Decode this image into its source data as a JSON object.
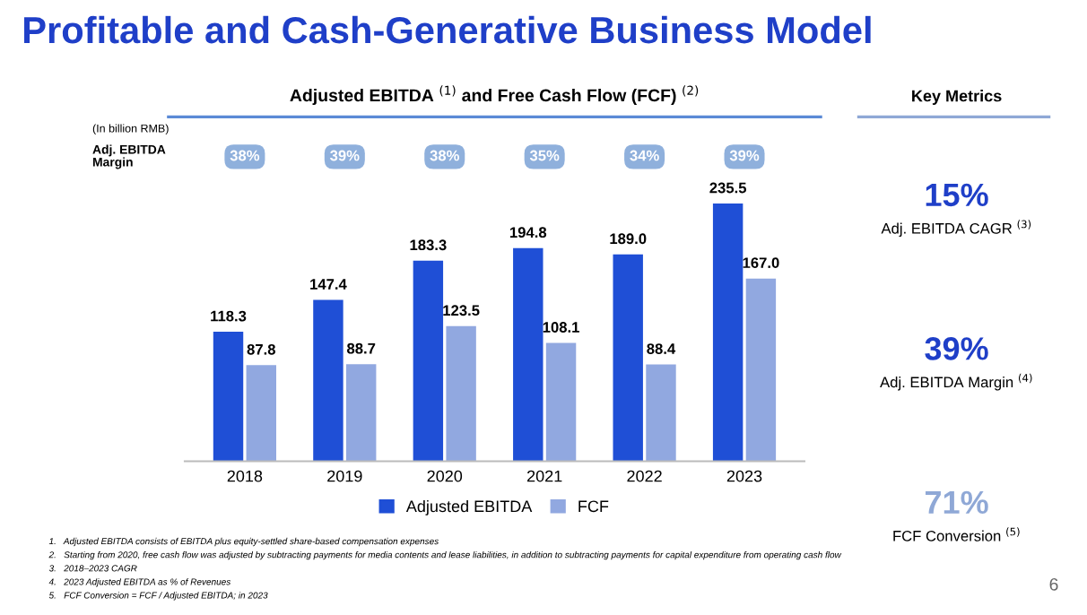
{
  "chart_data": [
    {
      "type": "bar",
      "title": "Profitable and Cash-Generative Business Model",
      "subtitle": "Adjusted EBITDA $^{(1)}$ and Free Cash Flow (FCF) $^{(2)}$",
      "categories": [
        "2018",
        "2019",
        "2020",
        "2021",
        "2022",
        "2023"
      ],
      "series": [
        {
          "name": "Adjusted EBITDA",
          "color": "#1f4fd6",
          "values": [
            118.3,
            147.4,
            183.3,
            194.8,
            189.0,
            235.5
          ],
          "value_labels": [
            "118.3",
            "147.4",
            "183.3",
            "194.8",
            "189.0",
            "235.5"
          ]
        },
        {
          "name": "FCF",
          "color": "#91a8e0",
          "values": [
            87.8,
            88.7,
            123.5,
            108.1,
            88.4,
            167.0
          ],
          "value_labels": [
            "87.8",
            "88.7",
            "123.5",
            "108.1",
            "88.4",
            "167.0"
          ]
        }
      ],
      "legend": "bottom",
      "grid": false,
      "annotations": [
        "(In billion RMB)",
        "Adj. EBITDA\nMargin",
        "38%",
        "39%",
        "38%",
        "35%",
        "34%",
        "39%",
        "1.   Adjusted EBITDA consists of EBITDA plus equity-settled share-based compensation expenses",
        "2.   Starting from 2020, free cash flow was adjusted by subtracting payments for media contents and lease liabilities, in addition to subtracting payments for capital expenditure from operating cash flow",
        "3.   2018–2023 CAGR",
        "4.   2023 Adjusted EBITDA as % of Revenues",
        "5.   FCF Conversion = FCF / Adjusted EBITDA; in 2023",
        "6"
      ]
    },
    {
      "type": "other",
      "title": "Key Metrics",
      "annotations": [
        "15%",
        "Adj. EBITDA CAGR $^{(3)}$",
        "39%",
        "Adj. EBITDA Margin $^{(4)}$",
        "71%",
        "FCF Conversion $^{(5)}$"
      ]
    }
  ]
}
